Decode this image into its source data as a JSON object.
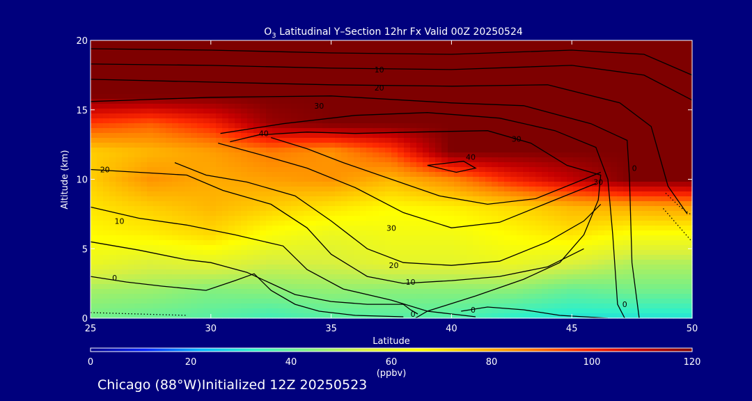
{
  "chart_data": {
    "type": "heatmap",
    "title_prefix": "O",
    "title_sub": "3",
    "title_rest": " Latitudinal Y–Section 12hr  Fx Valid 00Z 20250524",
    "xlabel": "Latitude",
    "ylabel": "Altitude (km)",
    "xlim": [
      25,
      50
    ],
    "ylim": [
      0,
      20
    ],
    "x_ticks": [
      "25",
      "30",
      "35",
      "40",
      "45",
      "50"
    ],
    "y_ticks": [
      "0",
      "5",
      "10",
      "15",
      "20"
    ],
    "colorbar": {
      "label": "(ppbv)",
      "range": [
        0,
        120
      ],
      "ticks": [
        "0",
        "20",
        "40",
        "60",
        "80",
        "100",
        "120"
      ]
    },
    "colors": {
      "background": "#00007d",
      "stops": [
        "#00008c",
        "#0022ff",
        "#00b4ff",
        "#30f0c8",
        "#80f080",
        "#d8f040",
        "#ffff00",
        "#ffc000",
        "#ff8000",
        "#ff2a00",
        "#c80000",
        "#7e0000"
      ]
    },
    "ozone_field": {
      "lat": [
        25,
        27.5,
        30,
        32.5,
        35,
        37.5,
        40,
        42.5,
        45,
        47.5,
        50
      ],
      "alt": [
        0,
        2,
        4,
        6,
        8,
        10,
        12,
        14,
        16,
        18,
        20
      ],
      "values_ppbv": [
        [
          42,
          40,
          38,
          35,
          38,
          38,
          37,
          32,
          30,
          30,
          30
        ],
        [
          48,
          47,
          44,
          45,
          46,
          45,
          45,
          45,
          40,
          42,
          42
        ],
        [
          60,
          56,
          58,
          54,
          55,
          58,
          58,
          60,
          56,
          50,
          50
        ],
        [
          66,
          68,
          72,
          64,
          60,
          62,
          62,
          66,
          70,
          64,
          64
        ],
        [
          70,
          74,
          78,
          74,
          70,
          66,
          68,
          72,
          78,
          80,
          82
        ],
        [
          74,
          84,
          80,
          82,
          84,
          78,
          86,
          100,
          110,
          120,
          120
        ],
        [
          74,
          78,
          82,
          88,
          84,
          95,
          120,
          120,
          120,
          120,
          120
        ],
        [
          96,
          92,
          100,
          116,
          120,
          120,
          120,
          120,
          120,
          120,
          120
        ],
        [
          120,
          120,
          120,
          120,
          120,
          120,
          120,
          120,
          120,
          120,
          120
        ],
        [
          120,
          120,
          120,
          120,
          120,
          120,
          120,
          120,
          120,
          120,
          120
        ],
        [
          120,
          120,
          120,
          120,
          120,
          120,
          120,
          120,
          120,
          120,
          120
        ]
      ]
    },
    "contour_labels": [
      {
        "text": "0",
        "lat": 26.0,
        "alt": 2.9
      },
      {
        "text": "10",
        "lat": 26.2,
        "alt": 7.0
      },
      {
        "text": "20",
        "lat": 25.6,
        "alt": 10.7
      },
      {
        "text": "40",
        "lat": 32.2,
        "alt": 13.3
      },
      {
        "text": "30",
        "lat": 37.5,
        "alt": 6.5
      },
      {
        "text": "20",
        "lat": 37.6,
        "alt": 3.8
      },
      {
        "text": "10",
        "lat": 38.3,
        "alt": 2.6
      },
      {
        "text": "0",
        "lat": 38.4,
        "alt": 0.3
      },
      {
        "text": "0",
        "lat": 40.9,
        "alt": 0.6
      },
      {
        "text": "40",
        "lat": 40.8,
        "alt": 11.6
      },
      {
        "text": "30",
        "lat": 42.7,
        "alt": 12.9
      },
      {
        "text": "30",
        "lat": 34.5,
        "alt": 15.3
      },
      {
        "text": "20",
        "lat": 37.0,
        "alt": 16.6
      },
      {
        "text": "10",
        "lat": 37.0,
        "alt": 17.9
      },
      {
        "text": "0",
        "lat": 47.2,
        "alt": 1.0
      },
      {
        "text": "0",
        "lat": 47.6,
        "alt": 10.8
      },
      {
        "text": "30",
        "lat": 46.1,
        "alt": 9.8
      }
    ],
    "contour_lines": [
      [
        [
          25,
          19.4
        ],
        [
          30,
          19.3
        ],
        [
          35,
          19.1
        ],
        [
          40,
          19.0
        ],
        [
          45,
          19.3
        ],
        [
          48,
          19.0
        ],
        [
          50,
          17.5
        ]
      ],
      [
        [
          25,
          18.3
        ],
        [
          30,
          18.2
        ],
        [
          35,
          18.0
        ],
        [
          40,
          17.9
        ],
        [
          45,
          18.2
        ],
        [
          48,
          17.5
        ],
        [
          50,
          15.7
        ]
      ],
      [
        [
          25,
          17.2
        ],
        [
          30,
          17.0
        ],
        [
          35,
          16.8
        ],
        [
          40,
          16.7
        ],
        [
          44,
          16.8
        ],
        [
          47,
          15.5
        ],
        [
          48.3,
          13.8
        ],
        [
          49.0,
          9.5
        ],
        [
          49.8,
          7.5
        ]
      ],
      [
        [
          25,
          15.6
        ],
        [
          30,
          15.9
        ],
        [
          35,
          16.0
        ],
        [
          40,
          15.5
        ],
        [
          43,
          15.3
        ],
        [
          45.8,
          14.0
        ],
        [
          47.3,
          12.8
        ],
        [
          47.4,
          10.0
        ],
        [
          47.5,
          4.0
        ],
        [
          47.8,
          0
        ]
      ],
      [
        [
          30.4,
          13.3
        ],
        [
          33,
          14.0
        ],
        [
          36,
          14.6
        ],
        [
          39,
          14.8
        ],
        [
          42,
          14.4
        ],
        [
          44.3,
          13.5
        ],
        [
          46,
          12.3
        ],
        [
          46.5,
          10.0
        ],
        [
          46.7,
          6.0
        ],
        [
          46.9,
          1.0
        ],
        [
          47.2,
          0
        ]
      ],
      [
        [
          30.8,
          12.7
        ],
        [
          32,
          13.2
        ],
        [
          34,
          13.4
        ],
        [
          36,
          13.3
        ],
        [
          38.5,
          13.4
        ],
        [
          41.5,
          13.5
        ],
        [
          43.3,
          12.6
        ],
        [
          44.8,
          11.0
        ],
        [
          46.2,
          10.3
        ],
        [
          46.1,
          8.5
        ],
        [
          45.5,
          6.0
        ],
        [
          44.5,
          4.0
        ],
        [
          43,
          2.8
        ],
        [
          41,
          1.6
        ],
        [
          39,
          0.5
        ],
        [
          38.5,
          0
        ]
      ],
      [
        [
          32.5,
          13.0
        ],
        [
          34,
          12.2
        ],
        [
          35.5,
          11.2
        ],
        [
          37.5,
          10.0
        ],
        [
          39.5,
          8.8
        ],
        [
          41.5,
          8.2
        ],
        [
          43.5,
          8.6
        ],
        [
          45.5,
          10.0
        ],
        [
          46.2,
          10.5
        ]
      ],
      [
        [
          39.0,
          11.0
        ],
        [
          40.5,
          11.3
        ],
        [
          41.0,
          10.8
        ],
        [
          40.2,
          10.5
        ],
        [
          39.0,
          11.0
        ]
      ],
      [
        [
          30.3,
          12.6
        ],
        [
          32,
          11.8
        ],
        [
          34,
          10.8
        ],
        [
          36,
          9.4
        ],
        [
          38,
          7.6
        ],
        [
          40,
          6.5
        ],
        [
          42,
          6.9
        ],
        [
          44,
          8.3
        ],
        [
          46,
          9.7
        ]
      ],
      [
        [
          28.5,
          11.2
        ],
        [
          29.8,
          10.3
        ],
        [
          31.5,
          9.8
        ],
        [
          33.5,
          8.8
        ],
        [
          35,
          7.0
        ],
        [
          36.5,
          5.0
        ],
        [
          38,
          4.0
        ],
        [
          40,
          3.8
        ],
        [
          42,
          4.1
        ],
        [
          44,
          5.5
        ],
        [
          45.5,
          7.0
        ],
        [
          46.2,
          8.2
        ]
      ],
      [
        [
          25,
          10.7
        ],
        [
          27,
          10.5
        ],
        [
          29,
          10.3
        ],
        [
          30.5,
          9.2
        ],
        [
          32.5,
          8.2
        ],
        [
          34,
          6.5
        ],
        [
          35,
          4.6
        ],
        [
          36.5,
          3.0
        ],
        [
          38,
          2.5
        ],
        [
          40,
          2.7
        ],
        [
          42,
          3.0
        ],
        [
          44,
          3.7
        ],
        [
          45.5,
          5.0
        ]
      ],
      [
        [
          25,
          8.0
        ],
        [
          27,
          7.2
        ],
        [
          29,
          6.7
        ],
        [
          31,
          6.0
        ],
        [
          33,
          5.2
        ],
        [
          34,
          3.5
        ],
        [
          35.5,
          2.1
        ],
        [
          37.5,
          1.3
        ],
        [
          39,
          0.5
        ],
        [
          40,
          0.3
        ],
        [
          41,
          0.1
        ]
      ],
      [
        [
          25,
          5.5
        ],
        [
          27,
          4.9
        ],
        [
          29,
          4.2
        ],
        [
          30,
          4.0
        ],
        [
          31.5,
          3.3
        ],
        [
          32.5,
          2.5
        ],
        [
          33.5,
          1.7
        ],
        [
          35,
          1.2
        ],
        [
          36.5,
          1.0
        ],
        [
          38,
          1.0
        ],
        [
          38.3,
          0.6
        ],
        [
          38.6,
          0.3
        ]
      ],
      [
        [
          25,
          3.0
        ],
        [
          26.5,
          2.6
        ],
        [
          28,
          2.3
        ],
        [
          29.8,
          2.0
        ],
        [
          31,
          2.7
        ],
        [
          31.8,
          3.2
        ],
        [
          32.5,
          2.0
        ],
        [
          33.5,
          1.0
        ],
        [
          34.5,
          0.5
        ],
        [
          36,
          0.2
        ],
        [
          38,
          0.1
        ]
      ],
      [
        [
          40.4,
          0.5
        ],
        [
          41.5,
          0.8
        ],
        [
          43,
          0.6
        ],
        [
          44.5,
          0.2
        ],
        [
          46.5,
          0
        ]
      ]
    ],
    "dotted_lines": [
      [
        [
          48.8,
          7.9
        ],
        [
          49.3,
          6.9
        ],
        [
          49.7,
          6.1
        ],
        [
          50,
          5.5
        ]
      ],
      [
        [
          48.9,
          9.0
        ],
        [
          49.5,
          8.0
        ],
        [
          50,
          7.4
        ]
      ],
      [
        [
          25,
          0.4
        ],
        [
          27,
          0.3
        ],
        [
          29,
          0.2
        ]
      ]
    ]
  },
  "footer": {
    "text": "Chicago (88°W)Initialized 12Z 20250523"
  }
}
